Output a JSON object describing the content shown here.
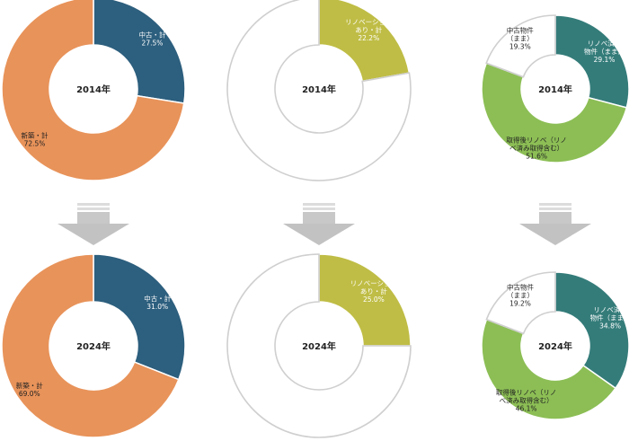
{
  "chart_data": [
    {
      "type": "pie",
      "center_label": "2014年",
      "slices": [
        {
          "label_lines": [
            "中古・計",
            "27.5%"
          ],
          "value": 27.5,
          "color": "#2d5f7e",
          "text_color": "#ffffff"
        },
        {
          "label_lines": [
            "新築・計",
            "72.5%"
          ],
          "value": 72.5,
          "color": "#e8935a",
          "text_color": "#222222"
        }
      ]
    },
    {
      "type": "pie",
      "center_label": "2014年",
      "slices": [
        {
          "label_lines": [
            "リノベーション",
            "あり・計",
            "22.2%"
          ],
          "value": 22.2,
          "color": "#bfbd45",
          "text_color": "#ffffff"
        },
        {
          "label_lines": [],
          "value": 77.8,
          "color": "#ffffff",
          "empty": true
        }
      ]
    },
    {
      "type": "pie",
      "center_label": "2014年",
      "slices": [
        {
          "label_lines": [
            "リノベ済み",
            "物件（まま）",
            "29.1%"
          ],
          "value": 29.1,
          "color": "#347c7a",
          "text_color": "#ffffff"
        },
        {
          "label_lines": [
            "取得後リノベ（リノ",
            "べ済み取得含む）",
            "51.6%"
          ],
          "value": 51.6,
          "color": "#8cbe55",
          "text_color": "#222222"
        },
        {
          "label_lines": [
            "中古物件",
            "（まま）",
            "19.3%"
          ],
          "value": 19.3,
          "color": "#ffffff",
          "text_color": "#222222",
          "empty": true
        }
      ]
    },
    {
      "type": "pie",
      "center_label": "2024年",
      "slices": [
        {
          "label_lines": [
            "中古・計",
            "31.0%"
          ],
          "value": 31.0,
          "color": "#2d5f7e",
          "text_color": "#ffffff"
        },
        {
          "label_lines": [
            "新築・計",
            "69.0%"
          ],
          "value": 69.0,
          "color": "#e8935a",
          "text_color": "#222222"
        }
      ]
    },
    {
      "type": "pie",
      "center_label": "2024年",
      "slices": [
        {
          "label_lines": [
            "リノベーション",
            "あり・計",
            "25.0%"
          ],
          "value": 25.0,
          "color": "#bfbd45",
          "text_color": "#ffffff"
        },
        {
          "label_lines": [],
          "value": 75.0,
          "color": "#ffffff",
          "empty": true
        }
      ]
    },
    {
      "type": "pie",
      "center_label": "2024年",
      "slices": [
        {
          "label_lines": [
            "リノベ済み",
            "物件（まま）",
            "34.8%"
          ],
          "value": 34.8,
          "color": "#347c7a",
          "text_color": "#ffffff"
        },
        {
          "label_lines": [
            "取得後リノベ（リノ",
            "べ済み取得含む）",
            "46.1%"
          ],
          "value": 46.1,
          "color": "#8cbe55",
          "text_color": "#222222"
        },
        {
          "label_lines": [
            "中古物件",
            "（まま）",
            "19.2%"
          ],
          "value": 19.2,
          "color": "#ffffff",
          "text_color": "#222222",
          "empty": true
        }
      ]
    }
  ],
  "colors": {
    "arrow": "#c2c2c2",
    "empty_outline": "#cfcfcf"
  }
}
